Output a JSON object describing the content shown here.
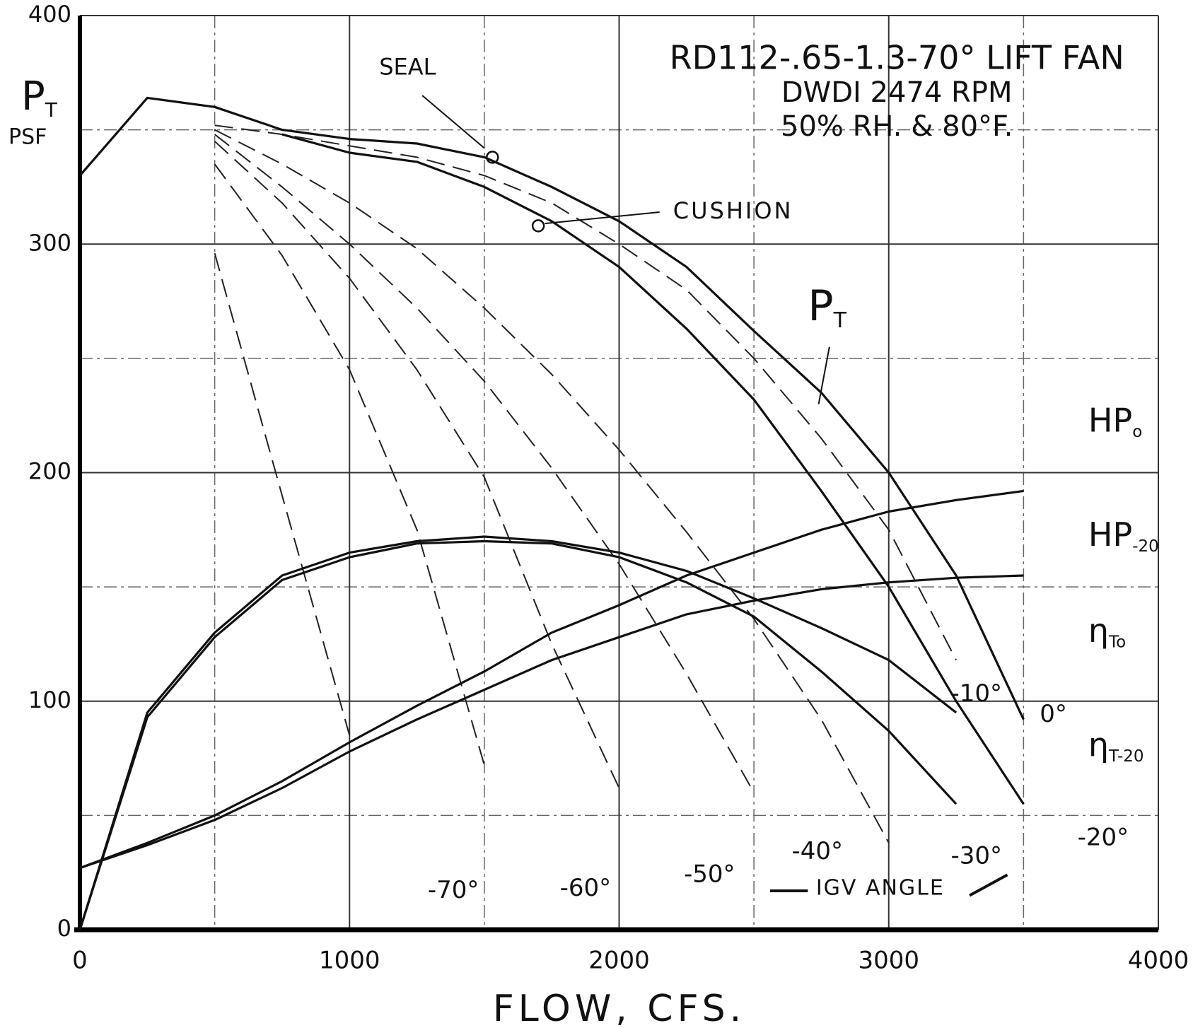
{
  "chart_data": {
    "type": "line",
    "title": [
      "RD112-.65-1.3-70° LIFT FAN",
      "DWDI 2474 RPM",
      "50% RH. & 80°F."
    ],
    "x_label": "FLOW, CFS.",
    "y_label": {
      "text": "P",
      "sub": "T",
      "unit": "PSF"
    },
    "x": [
      0,
      250,
      500,
      750,
      1000,
      1250,
      1500,
      1750,
      2000,
      2250,
      2500,
      2750,
      3000,
      3250,
      3500
    ],
    "xlim": [
      0,
      4000
    ],
    "ylim": [
      0,
      400
    ],
    "xticks": [
      0,
      1000,
      2000,
      3000,
      4000
    ],
    "yticks": [
      0,
      100,
      200,
      300,
      400
    ],
    "xgrid": [
      500,
      1500,
      2500,
      3500
    ],
    "ygrid": [
      50,
      150,
      250,
      350
    ],
    "grid": true,
    "series": [
      {
        "name": "0°",
        "color": "#111111",
        "dashed": false,
        "values": [
          330,
          364,
          360,
          350,
          346,
          344,
          338,
          325,
          310,
          290,
          262,
          235,
          200,
          155,
          92
        ]
      },
      {
        "name": "-10°",
        "color": "#222222",
        "dashed": true,
        "values": [
          null,
          null,
          352,
          348,
          343,
          338,
          330,
          318,
          300,
          280,
          250,
          215,
          175,
          118,
          null
        ]
      },
      {
        "name": "-20°",
        "color": "#111111",
        "dashed": false,
        "values": [
          null,
          null,
          null,
          348,
          340,
          336,
          325,
          310,
          290,
          263,
          232,
          192,
          150,
          100,
          55
        ]
      },
      {
        "name": "-30°",
        "color": "#222222",
        "dashed": true,
        "values": [
          null,
          null,
          350,
          335,
          318,
          298,
          272,
          243,
          210,
          174,
          136,
          92,
          38,
          null,
          null
        ]
      },
      {
        "name": "-40°",
        "color": "#222222",
        "dashed": true,
        "values": [
          null,
          null,
          348,
          325,
          300,
          272,
          240,
          202,
          160,
          112,
          60,
          null,
          null,
          null,
          null
        ]
      },
      {
        "name": "-50°",
        "color": "#222222",
        "dashed": true,
        "values": [
          null,
          null,
          345,
          318,
          285,
          245,
          198,
          125,
          62,
          null,
          null,
          null,
          null,
          null,
          null
        ]
      },
      {
        "name": "-60°",
        "color": "#222222",
        "dashed": true,
        "values": [
          null,
          null,
          335,
          295,
          245,
          175,
          72,
          null,
          null,
          null,
          null,
          null,
          null,
          null,
          null
        ]
      },
      {
        "name": "-70°",
        "color": "#222222",
        "dashed": true,
        "values": [
          null,
          null,
          296,
          190,
          85,
          null,
          null,
          null,
          null,
          null,
          null,
          null,
          null,
          null,
          null
        ]
      },
      {
        "name": "HP",
        "sub": "o",
        "color": "#111111",
        "dashed": false,
        "values": [
          27,
          38,
          50,
          65,
          82,
          98,
          113,
          130,
          142,
          155,
          165,
          175,
          183,
          188,
          192
        ]
      },
      {
        "name": "HP",
        "sub": "-20",
        "color": "#111111",
        "dashed": false,
        "values": [
          27,
          37,
          48,
          62,
          78,
          92,
          105,
          118,
          128,
          138,
          144,
          149,
          152,
          154,
          155
        ]
      },
      {
        "name": "η",
        "sub": "To",
        "color": "#111111",
        "dashed": false,
        "values": [
          0,
          95,
          130,
          155,
          165,
          170,
          172,
          170,
          165,
          157,
          145,
          132,
          118,
          95,
          null
        ]
      },
      {
        "name": "η",
        "sub": "T-20",
        "color": "#111111",
        "dashed": false,
        "values": [
          0,
          93,
          128,
          153,
          163,
          169,
          170,
          169,
          163,
          152,
          137,
          113,
          87,
          55,
          null
        ]
      }
    ],
    "points": [
      {
        "label": "SEAL",
        "x": 1530,
        "y": 338
      },
      {
        "label": "CUSHION",
        "x": 1700,
        "y": 308
      }
    ],
    "annotation": {
      "text": "P",
      "sub": "T"
    },
    "igv_note": "IGV ANGLE"
  }
}
